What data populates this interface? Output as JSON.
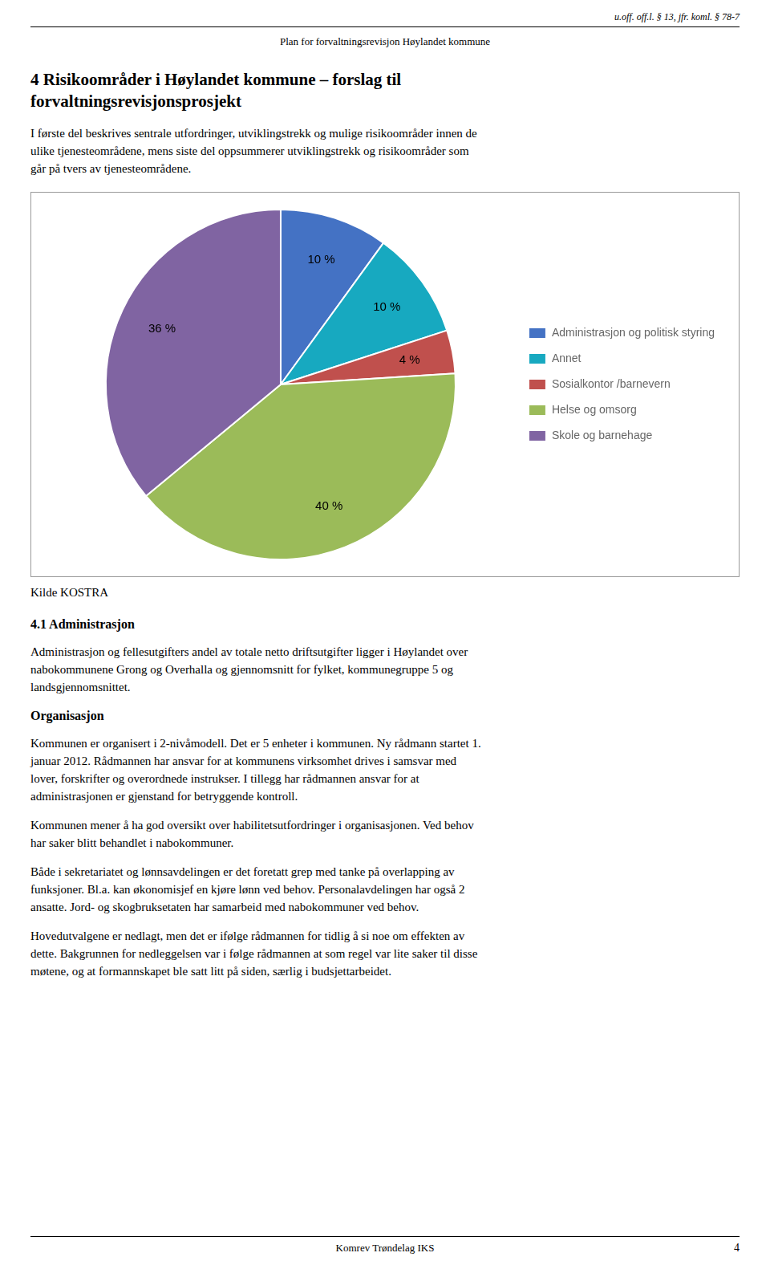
{
  "chart_data": {
    "type": "pie",
    "categories": [
      "Administrasjon og politisk styring",
      "Annet",
      "Sosialkontor /barnevern",
      "Helse og omsorg",
      "Skole og barnehage"
    ],
    "values": [
      10,
      10,
      4,
      40,
      36
    ],
    "value_labels": [
      "10 %",
      "10 %",
      "4 %",
      "40 %",
      "36 %"
    ],
    "colors": [
      "#4472C4",
      "#17A9C0",
      "#C0504D",
      "#9BBB59",
      "#8064A2"
    ],
    "data_labels": true,
    "legend": "right",
    "annotations": [
      "u.off. off.l. § 13, jfr. koml. § 78-7",
      "Plan for forvaltningsrevisjon Høylandet kommune",
      "4  Risikoområder i Høylandet kommune – forslag til\nforvaltningsrevisjonsprosjekt",
      "I første del beskrives sentrale utfordringer, utviklingstrekk og mulige risikoområder innen de\nulike tjenesteområdene, mens siste del oppsummerer utviklingstrekk og risikoområder som\ngår på tvers av tjenesteområdene.",
      "Kilde KOSTRA",
      "4.1  Administrasjon",
      "Administrasjon og fellesutgifters andel av totale netto driftsutgifter ligger i Høylandet over\nnabokommunene Grong og Overhalla og gjennomsnitt for fylket, kommunegruppe 5 og\nlandsgjennomsnittet.",
      "Organisasjon",
      "Kommunen er organisert i 2-nivåmodell. Det er 5 enheter i kommunen. Ny rådmann startet 1.\njanuar 2012. Rådmannen har ansvar for at kommunens virksomhet drives i samsvar med\nlover, forskrifter og overordnede instrukser. I tillegg har rådmannen ansvar for at\nadministrasjonen er gjenstand for betryggende kontroll.",
      "Kommunen mener å ha god oversikt over habilitetsutfordringer i organisasjonen. Ved behov\nhar saker blitt behandlet i nabokommuner.",
      "Både i sekretariatet og lønnsavdelingen er det foretatt grep med tanke på overlapping av\nfunksjoner. Bl.a. kan økonomisjef en kjøre lønn ved behov. Personalavdelingen har også 2\nansatte. Jord- og skogbruksetaten har samarbeid med nabokommuner ved behov.",
      "Hovedutvalgene er nedlagt, men det er ifølge rådmannen for tidlig å si noe om effekten av\ndette. Bakgrunnen for nedleggelsen var i følge rådmannen at som regel var lite saker til disse\nmøtene, og at formannskapet ble satt litt på siden, særlig i budsjettarbeidet.",
      "Komrev Trøndelag IKS",
      "4"
    ]
  }
}
